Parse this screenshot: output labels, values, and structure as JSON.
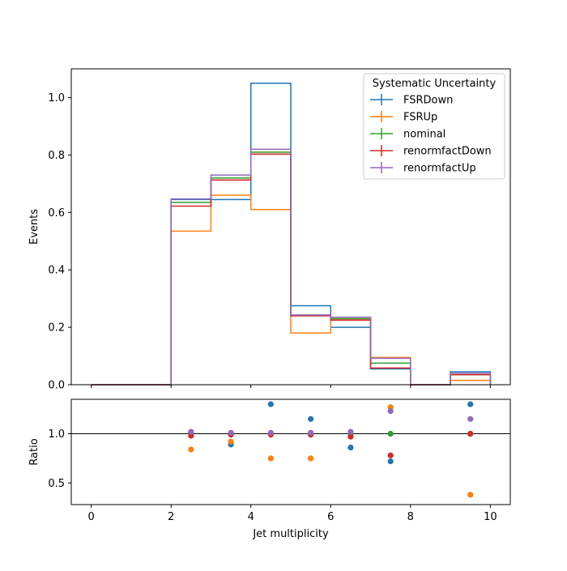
{
  "chart_data": [
    {
      "type": "histogram",
      "xlabel": "",
      "ylabel": "Events",
      "xlim": [
        -0.5,
        10.5
      ],
      "ylim": [
        0,
        1.1
      ],
      "yticks": [
        0.0,
        0.2,
        0.4,
        0.6,
        0.8,
        1.0
      ],
      "ytick_labels": [
        "0.0",
        "0.2",
        "0.4",
        "0.6",
        "0.8",
        "1.0"
      ],
      "bin_edges": [
        0,
        1,
        2,
        3,
        4,
        5,
        6,
        7,
        8,
        9,
        10
      ],
      "legend": {
        "title": "Systematic Uncertainty",
        "position": "top-right"
      },
      "series": [
        {
          "name": "FSRDown",
          "color": "#1f77b4",
          "values": [
            0,
            0,
            0.645,
            0.645,
            1.05,
            0.275,
            0.2,
            0.055,
            0,
            0.045
          ]
        },
        {
          "name": "FSRUp",
          "color": "#ff7f0e",
          "values": [
            0,
            0,
            0.535,
            0.66,
            0.61,
            0.18,
            0.23,
            0.095,
            0,
            0.015
          ]
        },
        {
          "name": "nominal",
          "color": "#2ca02c",
          "values": [
            0,
            0,
            0.635,
            0.72,
            0.81,
            0.24,
            0.23,
            0.075,
            0,
            0.035
          ]
        },
        {
          "name": "renormfactDown",
          "color": "#d62728",
          "values": [
            0,
            0,
            0.622,
            0.713,
            0.803,
            0.24,
            0.225,
            0.058,
            0,
            0.035
          ]
        },
        {
          "name": "renormfactUp",
          "color": "#9467bd",
          "values": [
            0,
            0,
            0.647,
            0.73,
            0.82,
            0.243,
            0.235,
            0.092,
            0,
            0.04
          ]
        }
      ]
    },
    {
      "type": "scatter",
      "xlabel": "Jet multiplicity",
      "ylabel": "Ratio",
      "xlim": [
        -0.5,
        10.5
      ],
      "ylim": [
        0.28,
        1.35
      ],
      "xticks": [
        0,
        2,
        4,
        6,
        8,
        10
      ],
      "xtick_labels": [
        "0",
        "2",
        "4",
        "6",
        "8",
        "10"
      ],
      "yticks": [
        0.5,
        1.0
      ],
      "ytick_labels": [
        "0.5",
        "1.0"
      ],
      "reference_line": 1.0,
      "x": [
        2.5,
        3.5,
        4.5,
        5.5,
        6.5,
        7.5,
        9.5
      ],
      "series": [
        {
          "name": "FSRDown",
          "color": "#1f77b4",
          "values": [
            1.01,
            0.89,
            1.3,
            1.15,
            0.86,
            0.72,
            1.3
          ]
        },
        {
          "name": "FSRUp",
          "color": "#ff7f0e",
          "values": [
            0.84,
            0.92,
            0.75,
            0.75,
            1.0,
            1.27,
            0.38
          ]
        },
        {
          "name": "nominal",
          "color": "#2ca02c",
          "values": [
            1.0,
            1.0,
            1.0,
            1.0,
            1.0,
            1.0,
            1.0
          ]
        },
        {
          "name": "renormfactDown",
          "color": "#d62728",
          "values": [
            0.98,
            0.99,
            0.99,
            0.99,
            0.97,
            0.78,
            1.0
          ]
        },
        {
          "name": "renormfactUp",
          "color": "#9467bd",
          "values": [
            1.02,
            1.01,
            1.01,
            1.01,
            1.02,
            1.23,
            1.15
          ]
        }
      ]
    }
  ]
}
